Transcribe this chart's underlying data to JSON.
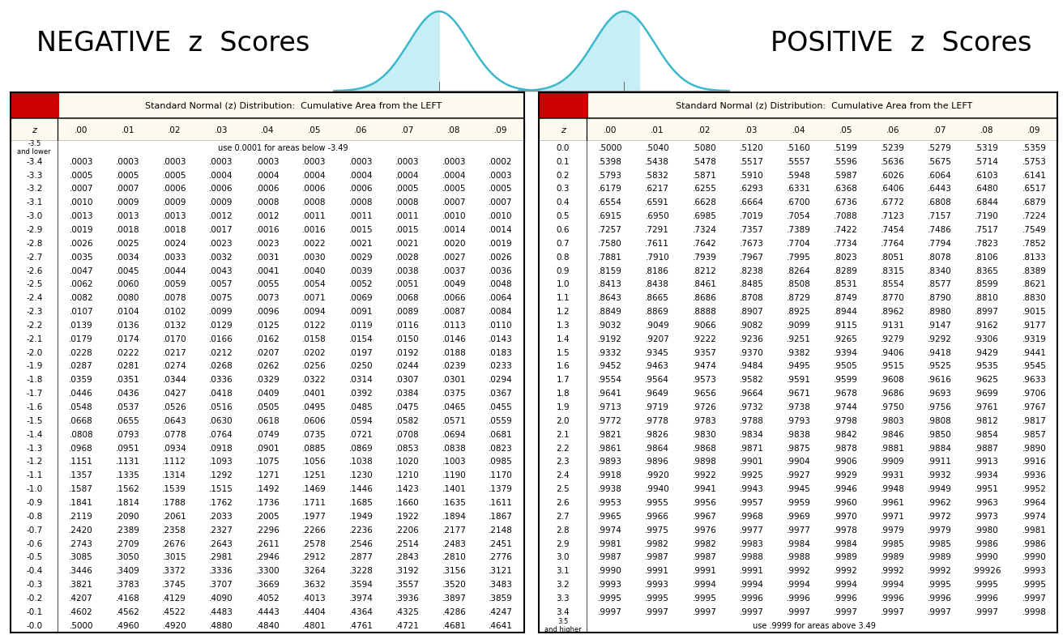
{
  "neg_title": "NEGATIVE  z  Scores",
  "pos_title": "POSITIVE  z  Scores",
  "table_title": "Standard Normal (z) Distribution:  Cumulative Area from the LEFT",
  "col_headers": [
    "z",
    ".00",
    ".01",
    ".02",
    ".03",
    ".04",
    ".05",
    ".06",
    ".07",
    ".08",
    ".09"
  ],
  "bg_color": "#FDFAF0",
  "alt_color": "#F0EAD2",
  "header_bg": "#CC0000",
  "curve_color": "#3BB8CC",
  "curve_fill": "#C8EEF5",
  "neg_rows": [
    [
      "-3.5\nand lower",
      "use 0.0001 for areas below -3.49",
      "",
      "",
      "",
      "",
      "",
      "",
      "",
      "",
      ""
    ],
    [
      "-3.4",
      ".0003",
      ".0003",
      ".0003",
      ".0003",
      ".0003",
      ".0003",
      ".0003",
      ".0003",
      ".0003",
      ".0002"
    ],
    [
      "-3.3",
      ".0005",
      ".0005",
      ".0005",
      ".0004",
      ".0004",
      ".0004",
      ".0004",
      ".0004",
      ".0004",
      ".0003"
    ],
    [
      "-3.2",
      ".0007",
      ".0007",
      ".0006",
      ".0006",
      ".0006",
      ".0006",
      ".0006",
      ".0005",
      ".0005",
      ".0005"
    ],
    [
      "-3.1",
      ".0010",
      ".0009",
      ".0009",
      ".0009",
      ".0008",
      ".0008",
      ".0008",
      ".0008",
      ".0007",
      ".0007"
    ],
    [
      "-3.0",
      ".0013",
      ".0013",
      ".0013",
      ".0012",
      ".0012",
      ".0011",
      ".0011",
      ".0011",
      ".0010",
      ".0010"
    ],
    [
      "-2.9",
      ".0019",
      ".0018",
      ".0018",
      ".0017",
      ".0016",
      ".0016",
      ".0015",
      ".0015",
      ".0014",
      ".0014"
    ],
    [
      "-2.8",
      ".0026",
      ".0025",
      ".0024",
      ".0023",
      ".0023",
      ".0022",
      ".0021",
      ".0021",
      ".0020",
      ".0019"
    ],
    [
      "-2.7",
      ".0035",
      ".0034",
      ".0033",
      ".0032",
      ".0031",
      ".0030",
      ".0029",
      ".0028",
      ".0027",
      ".0026"
    ],
    [
      "-2.6",
      ".0047",
      ".0045",
      ".0044",
      ".0043",
      ".0041",
      ".0040",
      ".0039",
      ".0038",
      ".0037",
      ".0036"
    ],
    [
      "-2.5",
      ".0062",
      ".0060",
      ".0059",
      ".0057",
      ".0055",
      ".0054",
      ".0052",
      ".0051",
      ".0049",
      ".0048"
    ],
    [
      "-2.4",
      ".0082",
      ".0080",
      ".0078",
      ".0075",
      ".0073",
      ".0071",
      ".0069",
      ".0068",
      ".0066",
      ".0064"
    ],
    [
      "-2.3",
      ".0107",
      ".0104",
      ".0102",
      ".0099",
      ".0096",
      ".0094",
      ".0091",
      ".0089",
      ".0087",
      ".0084"
    ],
    [
      "-2.2",
      ".0139",
      ".0136",
      ".0132",
      ".0129",
      ".0125",
      ".0122",
      ".0119",
      ".0116",
      ".0113",
      ".0110"
    ],
    [
      "-2.1",
      ".0179",
      ".0174",
      ".0170",
      ".0166",
      ".0162",
      ".0158",
      ".0154",
      ".0150",
      ".0146",
      ".0143"
    ],
    [
      "-2.0",
      ".0228",
      ".0222",
      ".0217",
      ".0212",
      ".0207",
      ".0202",
      ".0197",
      ".0192",
      ".0188",
      ".0183"
    ],
    [
      "-1.9",
      ".0287",
      ".0281",
      ".0274",
      ".0268",
      ".0262",
      ".0256",
      ".0250",
      ".0244",
      ".0239",
      ".0233"
    ],
    [
      "-1.8",
      ".0359",
      ".0351",
      ".0344",
      ".0336",
      ".0329",
      ".0322",
      ".0314",
      ".0307",
      ".0301",
      ".0294"
    ],
    [
      "-1.7",
      ".0446",
      ".0436",
      ".0427",
      ".0418",
      ".0409",
      ".0401",
      ".0392",
      ".0384",
      ".0375",
      ".0367"
    ],
    [
      "-1.6",
      ".0548",
      ".0537",
      ".0526",
      ".0516",
      ".0505",
      ".0495",
      ".0485",
      ".0475",
      ".0465",
      ".0455"
    ],
    [
      "-1.5",
      ".0668",
      ".0655",
      ".0643",
      ".0630",
      ".0618",
      ".0606",
      ".0594",
      ".0582",
      ".0571",
      ".0559"
    ],
    [
      "-1.4",
      ".0808",
      ".0793",
      ".0778",
      ".0764",
      ".0749",
      ".0735",
      ".0721",
      ".0708",
      ".0694",
      ".0681"
    ],
    [
      "-1.3",
      ".0968",
      ".0951",
      ".0934",
      ".0918",
      ".0901",
      ".0885",
      ".0869",
      ".0853",
      ".0838",
      ".0823"
    ],
    [
      "-1.2",
      ".1151",
      ".1131",
      ".1112",
      ".1093",
      ".1075",
      ".1056",
      ".1038",
      ".1020",
      ".1003",
      ".0985"
    ],
    [
      "-1.1",
      ".1357",
      ".1335",
      ".1314",
      ".1292",
      ".1271",
      ".1251",
      ".1230",
      ".1210",
      ".1190",
      ".1170"
    ],
    [
      "-1.0",
      ".1587",
      ".1562",
      ".1539",
      ".1515",
      ".1492",
      ".1469",
      ".1446",
      ".1423",
      ".1401",
      ".1379"
    ],
    [
      "-0.9",
      ".1841",
      ".1814",
      ".1788",
      ".1762",
      ".1736",
      ".1711",
      ".1685",
      ".1660",
      ".1635",
      ".1611"
    ],
    [
      "-0.8",
      ".2119",
      ".2090",
      ".2061",
      ".2033",
      ".2005",
      ".1977",
      ".1949",
      ".1922",
      ".1894",
      ".1867"
    ],
    [
      "-0.7",
      ".2420",
      ".2389",
      ".2358",
      ".2327",
      ".2296",
      ".2266",
      ".2236",
      ".2206",
      ".2177",
      ".2148"
    ],
    [
      "-0.6",
      ".2743",
      ".2709",
      ".2676",
      ".2643",
      ".2611",
      ".2578",
      ".2546",
      ".2514",
      ".2483",
      ".2451"
    ],
    [
      "-0.5",
      ".3085",
      ".3050",
      ".3015",
      ".2981",
      ".2946",
      ".2912",
      ".2877",
      ".2843",
      ".2810",
      ".2776"
    ],
    [
      "-0.4",
      ".3446",
      ".3409",
      ".3372",
      ".3336",
      ".3300",
      ".3264",
      ".3228",
      ".3192",
      ".3156",
      ".3121"
    ],
    [
      "-0.3",
      ".3821",
      ".3783",
      ".3745",
      ".3707",
      ".3669",
      ".3632",
      ".3594",
      ".3557",
      ".3520",
      ".3483"
    ],
    [
      "-0.2",
      ".4207",
      ".4168",
      ".4129",
      ".4090",
      ".4052",
      ".4013",
      ".3974",
      ".3936",
      ".3897",
      ".3859"
    ],
    [
      "-0.1",
      ".4602",
      ".4562",
      ".4522",
      ".4483",
      ".4443",
      ".4404",
      ".4364",
      ".4325",
      ".4286",
      ".4247"
    ],
    [
      "-0.0",
      ".5000",
      ".4960",
      ".4920",
      ".4880",
      ".4840",
      ".4801",
      ".4761",
      ".4721",
      ".4681",
      ".4641"
    ]
  ],
  "pos_rows": [
    [
      "0.0",
      ".5000",
      ".5040",
      ".5080",
      ".5120",
      ".5160",
      ".5199",
      ".5239",
      ".5279",
      ".5319",
      ".5359"
    ],
    [
      "0.1",
      ".5398",
      ".5438",
      ".5478",
      ".5517",
      ".5557",
      ".5596",
      ".5636",
      ".5675",
      ".5714",
      ".5753"
    ],
    [
      "0.2",
      ".5793",
      ".5832",
      ".5871",
      ".5910",
      ".5948",
      ".5987",
      ".6026",
      ".6064",
      ".6103",
      ".6141"
    ],
    [
      "0.3",
      ".6179",
      ".6217",
      ".6255",
      ".6293",
      ".6331",
      ".6368",
      ".6406",
      ".6443",
      ".6480",
      ".6517"
    ],
    [
      "0.4",
      ".6554",
      ".6591",
      ".6628",
      ".6664",
      ".6700",
      ".6736",
      ".6772",
      ".6808",
      ".6844",
      ".6879"
    ],
    [
      "0.5",
      ".6915",
      ".6950",
      ".6985",
      ".7019",
      ".7054",
      ".7088",
      ".7123",
      ".7157",
      ".7190",
      ".7224"
    ],
    [
      "0.6",
      ".7257",
      ".7291",
      ".7324",
      ".7357",
      ".7389",
      ".7422",
      ".7454",
      ".7486",
      ".7517",
      ".7549"
    ],
    [
      "0.7",
      ".7580",
      ".7611",
      ".7642",
      ".7673",
      ".7704",
      ".7734",
      ".7764",
      ".7794",
      ".7823",
      ".7852"
    ],
    [
      "0.8",
      ".7881",
      ".7910",
      ".7939",
      ".7967",
      ".7995",
      ".8023",
      ".8051",
      ".8078",
      ".8106",
      ".8133"
    ],
    [
      "0.9",
      ".8159",
      ".8186",
      ".8212",
      ".8238",
      ".8264",
      ".8289",
      ".8315",
      ".8340",
      ".8365",
      ".8389"
    ],
    [
      "1.0",
      ".8413",
      ".8438",
      ".8461",
      ".8485",
      ".8508",
      ".8531",
      ".8554",
      ".8577",
      ".8599",
      ".8621"
    ],
    [
      "1.1",
      ".8643",
      ".8665",
      ".8686",
      ".8708",
      ".8729",
      ".8749",
      ".8770",
      ".8790",
      ".8810",
      ".8830"
    ],
    [
      "1.2",
      ".8849",
      ".8869",
      ".8888",
      ".8907",
      ".8925",
      ".8944",
      ".8962",
      ".8980",
      ".8997",
      ".9015"
    ],
    [
      "1.3",
      ".9032",
      ".9049",
      ".9066",
      ".9082",
      ".9099",
      ".9115",
      ".9131",
      ".9147",
      ".9162",
      ".9177"
    ],
    [
      "1.4",
      ".9192",
      ".9207",
      ".9222",
      ".9236",
      ".9251",
      ".9265",
      ".9279",
      ".9292",
      ".9306",
      ".9319"
    ],
    [
      "1.5",
      ".9332",
      ".9345",
      ".9357",
      ".9370",
      ".9382",
      ".9394",
      ".9406",
      ".9418",
      ".9429",
      ".9441"
    ],
    [
      "1.6",
      ".9452",
      ".9463",
      ".9474",
      ".9484",
      ".9495",
      ".9505",
      ".9515",
      ".9525",
      ".9535",
      ".9545"
    ],
    [
      "1.7",
      ".9554",
      ".9564",
      ".9573",
      ".9582",
      ".9591",
      ".9599",
      ".9608",
      ".9616",
      ".9625",
      ".9633"
    ],
    [
      "1.8",
      ".9641",
      ".9649",
      ".9656",
      ".9664",
      ".9671",
      ".9678",
      ".9686",
      ".9693",
      ".9699",
      ".9706"
    ],
    [
      "1.9",
      ".9713",
      ".9719",
      ".9726",
      ".9732",
      ".9738",
      ".9744",
      ".9750",
      ".9756",
      ".9761",
      ".9767"
    ],
    [
      "2.0",
      ".9772",
      ".9778",
      ".9783",
      ".9788",
      ".9793",
      ".9798",
      ".9803",
      ".9808",
      ".9812",
      ".9817"
    ],
    [
      "2.1",
      ".9821",
      ".9826",
      ".9830",
      ".9834",
      ".9838",
      ".9842",
      ".9846",
      ".9850",
      ".9854",
      ".9857"
    ],
    [
      "2.2",
      ".9861",
      ".9864",
      ".9868",
      ".9871",
      ".9875",
      ".9878",
      ".9881",
      ".9884",
      ".9887",
      ".9890"
    ],
    [
      "2.3",
      ".9893",
      ".9896",
      ".9898",
      ".9901",
      ".9904",
      ".9906",
      ".9909",
      ".9911",
      ".9913",
      ".9916"
    ],
    [
      "2.4",
      ".9918",
      ".9920",
      ".9922",
      ".9925",
      ".9927",
      ".9929",
      ".9931",
      ".9932",
      ".9934",
      ".9936"
    ],
    [
      "2.5",
      ".9938",
      ".9940",
      ".9941",
      ".9943",
      ".9945",
      ".9946",
      ".9948",
      ".9949",
      ".9951",
      ".9952"
    ],
    [
      "2.6",
      ".9953",
      ".9955",
      ".9956",
      ".9957",
      ".9959",
      ".9960",
      ".9961",
      ".9962",
      ".9963",
      ".9964"
    ],
    [
      "2.7",
      ".9965",
      ".9966",
      ".9967",
      ".9968",
      ".9969",
      ".9970",
      ".9971",
      ".9972",
      ".9973",
      ".9974"
    ],
    [
      "2.8",
      ".9974",
      ".9975",
      ".9976",
      ".9977",
      ".9977",
      ".9978",
      ".9979",
      ".9979",
      ".9980",
      ".9981"
    ],
    [
      "2.9",
      ".9981",
      ".9982",
      ".9982",
      ".9983",
      ".9984",
      ".9984",
      ".9985",
      ".9985",
      ".9986",
      ".9986"
    ],
    [
      "3.0",
      ".9987",
      ".9987",
      ".9987",
      ".9988",
      ".9988",
      ".9989",
      ".9989",
      ".9989",
      ".9990",
      ".9990"
    ],
    [
      "3.1",
      ".9990",
      ".9991",
      ".9991",
      ".9991",
      ".9992",
      ".9992",
      ".9992",
      ".9992",
      ".99926",
      ".9993"
    ],
    [
      "3.2",
      ".9993",
      ".9993",
      ".9994",
      ".9994",
      ".9994",
      ".9994",
      ".9994",
      ".9995",
      ".9995",
      ".9995"
    ],
    [
      "3.3",
      ".9995",
      ".9995",
      ".9995",
      ".9996",
      ".9996",
      ".9996",
      ".9996",
      ".9996",
      ".9996",
      ".9997"
    ],
    [
      "3.4",
      ".9997",
      ".9997",
      ".9997",
      ".9997",
      ".9997",
      ".9997",
      ".9997",
      ".9997",
      ".9997",
      ".9998"
    ],
    [
      "3.5\nand higher",
      "use .9999 for areas above 3.49",
      "",
      "",
      "",
      "",
      "",
      "",
      "",
      "",
      ""
    ]
  ]
}
